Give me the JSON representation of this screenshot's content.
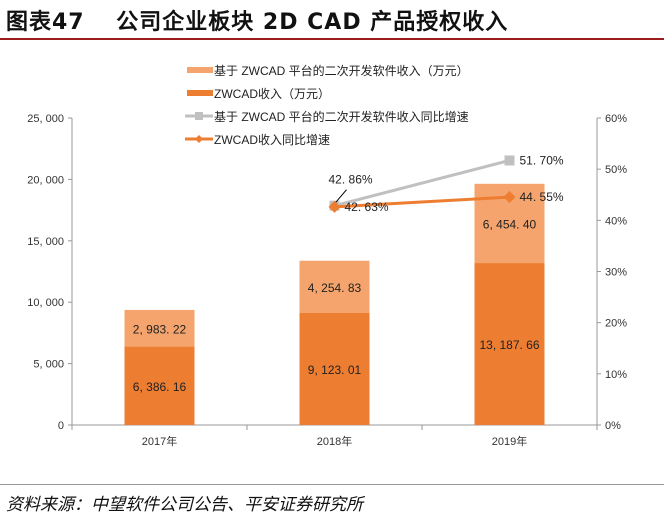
{
  "title": "图表47　 公司企业板块 2D CAD 产品授权收入",
  "source": "资料来源：中望软件公司公告、平安证券研究所",
  "chart_data": {
    "type": "bar",
    "stacked": true,
    "categories": [
      "2017年",
      "2018年",
      "2019年"
    ],
    "series": [
      {
        "name": "ZWCAD收入（万元）",
        "type": "bar",
        "axis": "left",
        "color": "#ed7d31",
        "values": [
          6386.16,
          9123.01,
          13187.66
        ],
        "labels": [
          "6, 386. 16",
          "9, 123. 01",
          "13, 187. 66"
        ]
      },
      {
        "name": "基于 ZWCAD 平台的二次开发软件收入（万元）",
        "type": "bar",
        "axis": "left",
        "color": "#f4a46c",
        "values": [
          2983.22,
          4254.83,
          6454.4
        ],
        "labels": [
          "2, 983. 22",
          "4, 254. 83",
          "6, 454. 40"
        ]
      },
      {
        "name": "基于 ZWCAD 平台的二次开发软件收入同比增速",
        "type": "line",
        "axis": "right",
        "color": "#c0c0c0",
        "marker": "square",
        "values": [
          null,
          42.86,
          51.7
        ],
        "labels": [
          "",
          "42. 86%",
          "51. 70%"
        ]
      },
      {
        "name": "ZWCAD收入同比增速",
        "type": "line",
        "axis": "right",
        "color": "#ed7d31",
        "marker": "diamond",
        "values": [
          null,
          42.63,
          44.55
        ],
        "labels": [
          "",
          "42. 63%",
          "44. 55%"
        ]
      }
    ],
    "legend_order": [
      1,
      0,
      2,
      3
    ],
    "legend": "top",
    "ylim": [
      0,
      25000
    ],
    "yticks": [
      "0",
      "5, 000",
      "10, 000",
      "15, 000",
      "20, 000",
      "25, 000"
    ],
    "y2lim": [
      0,
      60
    ],
    "y2ticks": [
      "0%",
      "10%",
      "20%",
      "30%",
      "40%",
      "50%",
      "60%"
    ],
    "grid": false
  }
}
